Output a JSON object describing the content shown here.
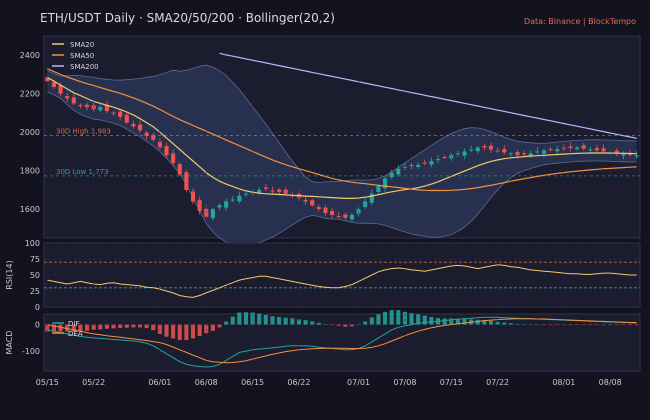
{
  "title": "ETH/USDT Daily  ·  SMA20/50/200  ·  Bollinger(20,2)",
  "source": "Data: Binance  |  BlockTempo",
  "colors": {
    "bg": "#13131f",
    "panel": "#1b1c2e",
    "grid": "#2a2c44",
    "axis_text": "#c8c8d0",
    "up": "#26a69a",
    "down": "#ef5350",
    "sma20": "#f5c86b",
    "sma50": "#f3913f",
    "sma200": "#b5b8ff",
    "band_fill": "#2c3658",
    "band_line": "#5a6a9a",
    "high_line": "#d4694f",
    "low_line": "#26a69a",
    "rsi": "#f5c86b",
    "rsi70": "#c8643c",
    "rsi30": "#26a69a",
    "dif": "#26a69a",
    "dea": "#f3913f"
  },
  "chart_data": [
    {
      "type": "candlestick",
      "panel": "price",
      "ylim": [
        1450,
        2500
      ],
      "yticks": [
        1600,
        1800,
        2000,
        2200,
        2400
      ],
      "start_date": "2023-05-15",
      "xtick_labels": [
        "05/15",
        "05/22",
        "06/01",
        "06/08",
        "06/15",
        "06/22",
        "07/01",
        "07/08",
        "07/15",
        "07/22",
        "08/01",
        "08/08"
      ],
      "ohlc_close": [
        2265,
        2235,
        2200,
        2175,
        2150,
        2135,
        2130,
        2120,
        2130,
        2110,
        2100,
        2080,
        2050,
        2030,
        2010,
        1980,
        1960,
        1920,
        1880,
        1840,
        1780,
        1700,
        1640,
        1590,
        1560,
        1600,
        1620,
        1640,
        1650,
        1670,
        1680,
        1690,
        1700,
        1705,
        1695,
        1690,
        1680,
        1670,
        1660,
        1640,
        1620,
        1600,
        1580,
        1570,
        1560,
        1555,
        1570,
        1600,
        1640,
        1680,
        1720,
        1760,
        1790,
        1810,
        1820,
        1825,
        1830,
        1840,
        1850,
        1860,
        1870,
        1880,
        1890,
        1900,
        1910,
        1920,
        1920,
        1910,
        1900,
        1895,
        1890,
        1880,
        1885,
        1890,
        1900,
        1905,
        1910,
        1912,
        1915,
        1918,
        1920,
        1915,
        1910,
        1905,
        1900,
        1895,
        1890,
        1885,
        1882,
        1880
      ],
      "series": [
        {
          "name": "SMA20",
          "values": [
            2285,
            2265,
            2245,
            2225,
            2205,
            2190,
            2175,
            2160,
            2150,
            2140,
            2130,
            2118,
            2105,
            2090,
            2070,
            2050,
            2028,
            2000,
            1970,
            1940,
            1910,
            1880,
            1850,
            1820,
            1790,
            1765,
            1745,
            1730,
            1718,
            1705,
            1695,
            1688,
            1683,
            1680,
            1678,
            1676,
            1674,
            1672,
            1670,
            1668,
            1666,
            1664,
            1662,
            1660,
            1658,
            1656,
            1656,
            1658,
            1662,
            1668,
            1675,
            1683,
            1690,
            1696,
            1701,
            1706,
            1712,
            1720,
            1730,
            1742,
            1756,
            1770,
            1784,
            1798,
            1812,
            1826,
            1838,
            1848,
            1856,
            1862,
            1867,
            1870,
            1873,
            1876,
            1878,
            1880,
            1882,
            1884,
            1886,
            1888,
            1890,
            1891,
            1892,
            1892,
            1892,
            1892,
            1891,
            1890,
            1889,
            1888
          ]
        },
        {
          "name": "SMA50",
          "values": [
            2330,
            2315,
            2300,
            2287,
            2275,
            2263,
            2252,
            2242,
            2232,
            2222,
            2212,
            2202,
            2190,
            2178,
            2165,
            2150,
            2135,
            2118,
            2100,
            2082,
            2065,
            2050,
            2035,
            2020,
            2005,
            1990,
            1975,
            1960,
            1945,
            1930,
            1915,
            1900,
            1885,
            1870,
            1856,
            1843,
            1831,
            1820,
            1810,
            1800,
            1790,
            1780,
            1770,
            1760,
            1752,
            1745,
            1740,
            1736,
            1732,
            1728,
            1724,
            1720,
            1716,
            1712,
            1708,
            1704,
            1700,
            1698,
            1697,
            1697,
            1697,
            1698,
            1700,
            1703,
            1707,
            1712,
            1718,
            1724,
            1731,
            1738,
            1745,
            1752,
            1758,
            1764,
            1770,
            1776,
            1781,
            1786,
            1790,
            1794,
            1798,
            1801,
            1804,
            1807,
            1810,
            1812,
            1814,
            1816,
            1818,
            1820
          ]
        },
        {
          "name": "SMA200",
          "values": [
            null,
            null,
            null,
            null,
            null,
            null,
            null,
            null,
            null,
            null,
            null,
            null,
            null,
            null,
            null,
            null,
            null,
            null,
            null,
            null,
            null,
            null,
            null,
            null,
            null,
            null,
            2410,
            2402,
            2395,
            2388,
            2381,
            2374,
            2367,
            2360,
            2353,
            2346,
            2339,
            2332,
            2325,
            2318,
            2311,
            2304,
            2297,
            2290,
            2283,
            2276,
            2269,
            2262,
            2255,
            2248,
            2241,
            2234,
            2227,
            2220,
            2213,
            2206,
            2199,
            2192,
            2185,
            2178,
            2171,
            2164,
            2157,
            2150,
            2143,
            2136,
            2129,
            2122,
            2115,
            2108,
            2101,
            2094,
            2087,
            2080,
            2073,
            2066,
            2059,
            2052,
            2045,
            2038,
            2031,
            2024,
            2017,
            2010,
            2003,
            1996,
            1989,
            1982,
            1975,
            1968
          ]
        }
      ],
      "annotations": [
        {
          "text": "30D High 1,983",
          "value": 1983
        },
        {
          "text": "30D Low 1,773",
          "value": 1773
        }
      ],
      "legend": [
        "SMA20",
        "SMA50",
        "SMA200"
      ],
      "legend_position": "top-left"
    },
    {
      "type": "line",
      "panel": "rsi",
      "ylabel": "RSI(14)",
      "ylim": [
        0,
        100
      ],
      "yticks": [
        0,
        25,
        50,
        75,
        100
      ],
      "levels": [
        70,
        30
      ],
      "values": [
        42,
        40,
        38,
        36,
        38,
        40,
        38,
        36,
        35,
        37,
        38,
        36,
        35,
        34,
        33,
        31,
        30,
        28,
        25,
        22,
        18,
        16,
        15,
        18,
        22,
        26,
        30,
        34,
        38,
        42,
        44,
        46,
        48,
        48,
        46,
        44,
        42,
        40,
        38,
        36,
        34,
        32,
        31,
        30,
        30,
        32,
        35,
        40,
        45,
        50,
        55,
        58,
        60,
        61,
        60,
        58,
        57,
        56,
        58,
        60,
        62,
        64,
        65,
        64,
        62,
        60,
        62,
        64,
        66,
        65,
        63,
        62,
        60,
        58,
        57,
        56,
        55,
        54,
        53,
        52,
        52,
        51,
        51,
        52,
        53,
        53,
        52,
        51,
        50,
        50
      ]
    },
    {
      "type": "bar+line",
      "panel": "macd",
      "ylabel": "MACD",
      "ylim": [
        -175,
        40
      ],
      "yticks": [
        -100,
        0
      ],
      "legend": [
        "DIF",
        "DEA"
      ],
      "dif": [
        -20,
        -25,
        -30,
        -35,
        -40,
        -45,
        -48,
        -50,
        -52,
        -54,
        -56,
        -58,
        -60,
        -62,
        -65,
        -70,
        -80,
        -95,
        -110,
        -125,
        -140,
        -150,
        -155,
        -158,
        -160,
        -158,
        -150,
        -135,
        -120,
        -105,
        -100,
        -95,
        -92,
        -90,
        -88,
        -85,
        -82,
        -80,
        -80,
        -80,
        -82,
        -85,
        -88,
        -90,
        -92,
        -95,
        -95,
        -90,
        -80,
        -65,
        -50,
        -35,
        -20,
        -10,
        -5,
        0,
        5,
        8,
        10,
        12,
        15,
        18,
        20,
        22,
        24,
        26,
        28,
        28,
        27,
        26,
        25,
        24,
        23,
        22,
        21,
        20,
        19,
        18,
        17,
        16,
        15,
        14,
        13,
        12,
        11,
        10,
        9,
        8,
        7,
        6
      ],
      "dea": [
        0,
        -5,
        -10,
        -15,
        -20,
        -25,
        -30,
        -35,
        -38,
        -42,
        -45,
        -48,
        -51,
        -54,
        -57,
        -60,
        -64,
        -68,
        -75,
        -85,
        -95,
        -105,
        -115,
        -125,
        -135,
        -140,
        -142,
        -144,
        -143,
        -140,
        -136,
        -130,
        -124,
        -118,
        -112,
        -107,
        -102,
        -98,
        -95,
        -93,
        -91,
        -90,
        -89,
        -89,
        -89,
        -89,
        -90,
        -90,
        -89,
        -86,
        -80,
        -72,
        -62,
        -52,
        -42,
        -33,
        -25,
        -18,
        -12,
        -7,
        -3,
        0,
        3,
        6,
        9,
        12,
        15,
        17,
        19,
        20,
        21,
        22,
        22,
        22,
        21,
        21,
        20,
        19,
        18,
        17,
        16,
        15,
        14,
        13,
        12,
        11,
        10,
        9,
        8,
        8
      ]
    }
  ]
}
